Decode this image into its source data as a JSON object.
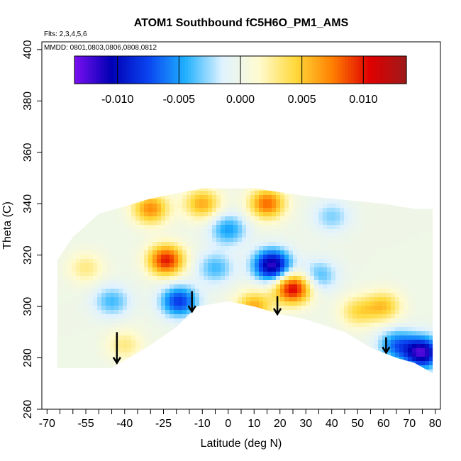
{
  "chart_data": {
    "type": "heatmap",
    "title": "ATOM1 Southbound fC5H6O_PM1_AMS",
    "flights_note": "Flts: 2,3,4,5,6",
    "dates_note": "MMDD: 0801,0803,0806,0808,0812",
    "xlabel": "Latitude (deg N)",
    "ylabel": "Theta (C)",
    "xlim": [
      -72,
      82
    ],
    "ylim": [
      260,
      403
    ],
    "x_tick_labels": [
      "-70",
      "-55",
      "-40",
      "-25",
      "-10",
      "0",
      "10",
      "20",
      "30",
      "40",
      "50",
      "60",
      "70",
      "80"
    ],
    "x_tick_values": [
      -70,
      -55,
      -40,
      -25,
      -10,
      0,
      10,
      20,
      30,
      40,
      50,
      60,
      70,
      80
    ],
    "x_minor_ticks": [
      -65,
      -60,
      -50,
      -45,
      -35,
      -30,
      -20,
      -15,
      -5,
      5,
      15,
      25,
      35,
      45,
      55,
      65,
      75
    ],
    "y_tick_labels": [
      "260",
      "280",
      "300",
      "320",
      "340",
      "360",
      "380",
      "400"
    ],
    "y_tick_values": [
      260,
      280,
      300,
      320,
      340,
      360,
      380,
      400
    ],
    "colorbar": {
      "range": [
        -0.0135,
        0.0135
      ],
      "tick_values": [
        -0.01,
        -0.005,
        0.0,
        0.005,
        0.01
      ],
      "tick_labels": [
        "-0.010",
        "-0.005",
        "0.000",
        "0.005",
        "0.010"
      ],
      "colors": [
        "#7b0ff0",
        "#0000b4",
        "#0a44f0",
        "#1fb0ff",
        "#dff2ff",
        "#fffbd0",
        "#ffd93a",
        "#ff7f00",
        "#e00000",
        "#9e1a1a"
      ]
    },
    "coverage_envelope": {
      "upper": [
        [
          -66,
          318
        ],
        [
          -60,
          327
        ],
        [
          -50,
          336
        ],
        [
          -30,
          342
        ],
        [
          -10,
          346
        ],
        [
          10,
          346
        ],
        [
          30,
          343
        ],
        [
          50,
          341
        ],
        [
          60,
          340
        ],
        [
          72,
          338
        ],
        [
          79,
          338
        ]
      ],
      "lower": [
        [
          -66,
          276
        ],
        [
          -45,
          276
        ],
        [
          -30,
          285
        ],
        [
          -20,
          292
        ],
        [
          -12,
          300
        ],
        [
          0,
          302
        ],
        [
          10,
          300
        ],
        [
          20,
          297
        ],
        [
          30,
          295
        ],
        [
          45,
          290
        ],
        [
          55,
          284
        ],
        [
          65,
          280
        ],
        [
          72,
          278
        ],
        [
          79,
          274
        ]
      ]
    },
    "features": [
      {
        "lat": -24,
        "theta": 318,
        "value": 0.01
      },
      {
        "lat": 25,
        "theta": 307,
        "value": 0.011
      },
      {
        "lat": -19,
        "theta": 302,
        "value": -0.008
      },
      {
        "lat": 17,
        "theta": 316,
        "value": -0.012
      },
      {
        "lat": 75,
        "theta": 282,
        "value": -0.012
      },
      {
        "lat": 65,
        "theta": 285,
        "value": -0.006
      },
      {
        "lat": -45,
        "theta": 302,
        "value": -0.004
      },
      {
        "lat": -40,
        "theta": 285,
        "value": 0.003
      },
      {
        "lat": 50,
        "theta": 298,
        "value": 0.004
      },
      {
        "lat": 60,
        "theta": 300,
        "value": 0.005
      },
      {
        "lat": 10,
        "theta": 300,
        "value": 0.006
      },
      {
        "lat": -30,
        "theta": 338,
        "value": 0.007
      },
      {
        "lat": 15,
        "theta": 340,
        "value": 0.008
      },
      {
        "lat": 0,
        "theta": 330,
        "value": -0.005
      },
      {
        "lat": 40,
        "theta": 335,
        "value": -0.003
      },
      {
        "lat": -55,
        "theta": 315,
        "value": 0.003
      },
      {
        "lat": -5,
        "theta": 315,
        "value": -0.004
      },
      {
        "lat": 35,
        "theta": 312,
        "value": -0.004
      },
      {
        "lat": -10,
        "theta": 340,
        "value": 0.006
      }
    ],
    "arrows": [
      {
        "lat": -43,
        "theta_top": 290,
        "theta_tip": 278
      },
      {
        "lat": -14,
        "theta_top": 306,
        "theta_tip": 298
      },
      {
        "lat": 19,
        "theta_top": 304,
        "theta_tip": 297
      },
      {
        "lat": 61,
        "theta_top": 288,
        "theta_tip": 282
      }
    ]
  }
}
